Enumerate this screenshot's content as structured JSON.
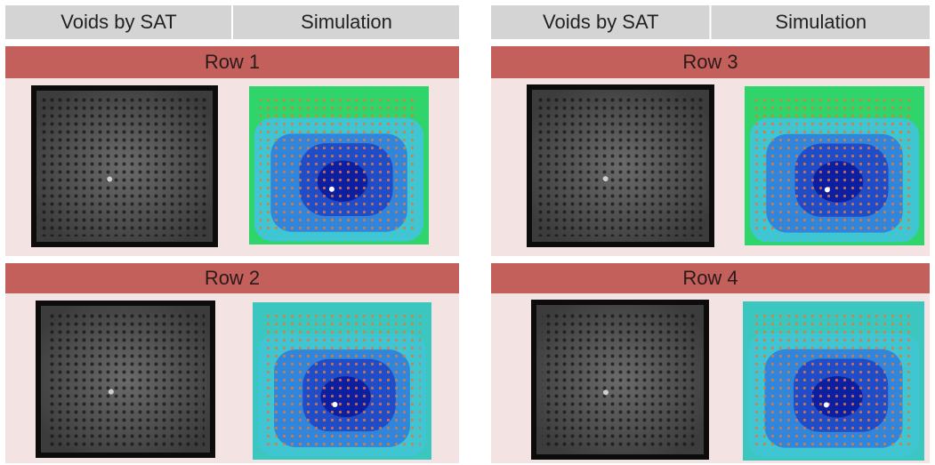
{
  "panels": [
    {
      "headers": [
        "Voids by SAT",
        "Simulation"
      ],
      "rows": [
        {
          "label": "Row 1"
        },
        {
          "label": "Row 2"
        }
      ]
    },
    {
      "headers": [
        "Voids by SAT",
        "Simulation"
      ],
      "rows": [
        {
          "label": "Row 3"
        },
        {
          "label": "Row 4"
        }
      ]
    }
  ]
}
